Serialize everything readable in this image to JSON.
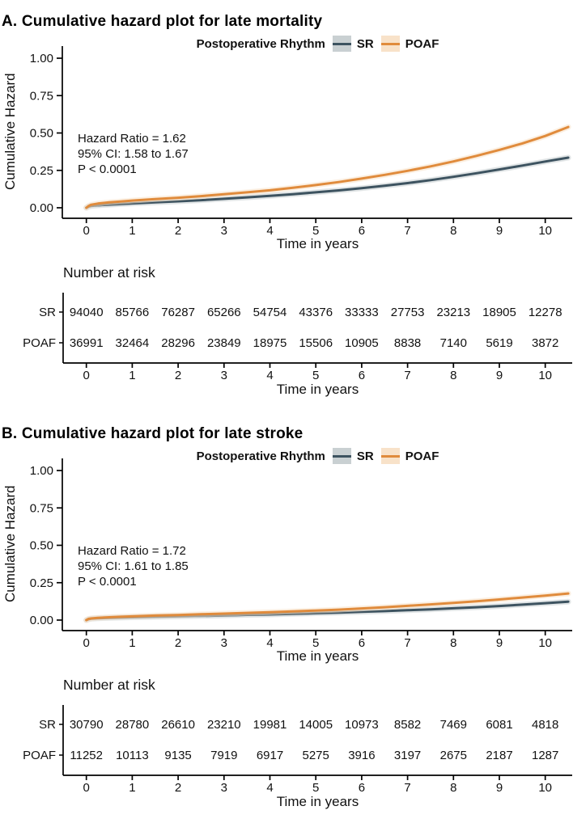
{
  "page": {
    "background": "#ffffff"
  },
  "colors": {
    "sr_line": "#3d5360",
    "poaf_line": "#e08b3c",
    "sr_band": "#c9d0d2",
    "poaf_band": "#f8e2c9",
    "sr_label": "#5a6f78",
    "poaf_label": "#e0923f",
    "axis": "#000000",
    "text": "#111111"
  },
  "panels": [
    {
      "title": "A. Cumulative hazard plot for late mortality",
      "legend": {
        "title": "Postoperative Rhythm",
        "items": [
          {
            "label": "SR"
          },
          {
            "label": "POAF"
          }
        ]
      },
      "ylabel": "Cumulative Hazard",
      "xlabel": "Time in years",
      "annotation": [
        "Hazard Ratio = 1.62",
        "95% CI: 1.58 to 1.67",
        "P < 0.0001"
      ],
      "risk": {
        "title": "Number at risk",
        "xlabel": "Time in years"
      }
    },
    {
      "title": "B. Cumulative hazard plot for late stroke",
      "legend": {
        "title": "Postoperative Rhythm",
        "items": [
          {
            "label": "SR"
          },
          {
            "label": "POAF"
          }
        ]
      },
      "ylabel": "Cumulative Hazard",
      "xlabel": "Time in years",
      "annotation": [
        "Hazard Ratio = 1.72",
        "95% CI: 1.61 to 1.85",
        "P < 0.0001"
      ],
      "risk": {
        "title": "Number at risk",
        "xlabel": "Time in years"
      }
    }
  ],
  "chart_data": [
    {
      "type": "line",
      "title": "A. Cumulative hazard plot for late mortality",
      "xlabel": "Time in years",
      "ylabel": "Cumulative Hazard",
      "ylim": [
        0,
        1
      ],
      "xlim": [
        -0.55,
        10.6
      ],
      "yticks": [
        {
          "v": 0,
          "label": "0.00"
        },
        {
          "v": 0.25,
          "label": "0.25"
        },
        {
          "v": 0.5,
          "label": "0.50"
        },
        {
          "v": 0.75,
          "label": "0.75"
        },
        {
          "v": 1,
          "label": "1.00"
        }
      ],
      "xticks": [
        0,
        1,
        2,
        3,
        4,
        5,
        6,
        7,
        8,
        9,
        10
      ],
      "legend_position": "top",
      "grid": false,
      "x": [
        0,
        0.05,
        0.1,
        0.25,
        0.5,
        0.75,
        1,
        1.5,
        2,
        2.5,
        3,
        3.5,
        4,
        4.5,
        5,
        5.5,
        6,
        6.5,
        7,
        7.5,
        8,
        8.5,
        9,
        9.5,
        10,
        10.5
      ],
      "series": [
        {
          "name": "SR",
          "values": [
            0,
            0.008,
            0.012,
            0.016,
            0.021,
            0.025,
            0.029,
            0.036,
            0.043,
            0.051,
            0.06,
            0.07,
            0.08,
            0.091,
            0.103,
            0.116,
            0.131,
            0.147,
            0.165,
            0.185,
            0.207,
            0.231,
            0.256,
            0.282,
            0.309,
            0.335
          ]
        },
        {
          "name": "POAF",
          "values": [
            0,
            0.012,
            0.02,
            0.028,
            0.036,
            0.042,
            0.048,
            0.058,
            0.067,
            0.078,
            0.09,
            0.103,
            0.117,
            0.134,
            0.152,
            0.172,
            0.195,
            0.22,
            0.247,
            0.277,
            0.31,
            0.347,
            0.387,
            0.43,
            0.48,
            0.54
          ]
        }
      ],
      "risk_table": {
        "title": "Number at risk",
        "times": [
          0,
          1,
          2,
          3,
          4,
          5,
          6,
          7,
          8,
          9,
          10
        ],
        "rows": [
          {
            "label": "SR",
            "values": [
              94040,
              85766,
              76287,
              65266,
              54754,
              43376,
              33333,
              27753,
              23213,
              18905,
              12278
            ]
          },
          {
            "label": "POAF",
            "values": [
              36991,
              32464,
              28296,
              23849,
              18975,
              15506,
              10905,
              8838,
              7140,
              5619,
              3872
            ]
          }
        ]
      }
    },
    {
      "type": "line",
      "title": "B. Cumulative hazard plot for late stroke",
      "xlabel": "Time in years",
      "ylabel": "Cumulative Hazard",
      "ylim": [
        0,
        1
      ],
      "xlim": [
        -0.55,
        10.6
      ],
      "yticks": [
        {
          "v": 0,
          "label": "0.00"
        },
        {
          "v": 0.25,
          "label": "0.25"
        },
        {
          "v": 0.5,
          "label": "0.50"
        },
        {
          "v": 0.75,
          "label": "0.75"
        },
        {
          "v": 1,
          "label": "1.00"
        }
      ],
      "xticks": [
        0,
        1,
        2,
        3,
        4,
        5,
        6,
        7,
        8,
        9,
        10
      ],
      "legend_position": "top",
      "grid": false,
      "x": [
        0,
        0.05,
        0.1,
        0.25,
        0.5,
        0.75,
        1,
        1.5,
        2,
        2.5,
        3,
        3.5,
        4,
        4.5,
        5,
        5.5,
        6,
        6.5,
        7,
        7.5,
        8,
        8.5,
        9,
        9.5,
        10,
        10.5
      ],
      "series": [
        {
          "name": "SR",
          "values": [
            0,
            0.006,
            0.009,
            0.012,
            0.015,
            0.017,
            0.019,
            0.022,
            0.025,
            0.028,
            0.031,
            0.035,
            0.038,
            0.042,
            0.046,
            0.05,
            0.055,
            0.06,
            0.066,
            0.072,
            0.079,
            0.086,
            0.094,
            0.103,
            0.113,
            0.123
          ]
        },
        {
          "name": "POAF",
          "values": [
            0,
            0.008,
            0.011,
            0.015,
            0.019,
            0.022,
            0.025,
            0.03,
            0.034,
            0.039,
            0.043,
            0.048,
            0.053,
            0.058,
            0.064,
            0.07,
            0.078,
            0.086,
            0.095,
            0.105,
            0.115,
            0.126,
            0.138,
            0.151,
            0.164,
            0.178
          ]
        }
      ],
      "risk_table": {
        "title": "Number at risk",
        "times": [
          0,
          1,
          2,
          3,
          4,
          5,
          6,
          7,
          8,
          9,
          10
        ],
        "rows": [
          {
            "label": "SR",
            "values": [
              30790,
              28780,
              26610,
              23210,
              19981,
              14005,
              10973,
              8582,
              7469,
              6081,
              4818
            ]
          },
          {
            "label": "POAF",
            "values": [
              11252,
              10113,
              9135,
              7919,
              6917,
              5275,
              3916,
              3197,
              2675,
              2187,
              1287
            ]
          }
        ]
      }
    }
  ]
}
